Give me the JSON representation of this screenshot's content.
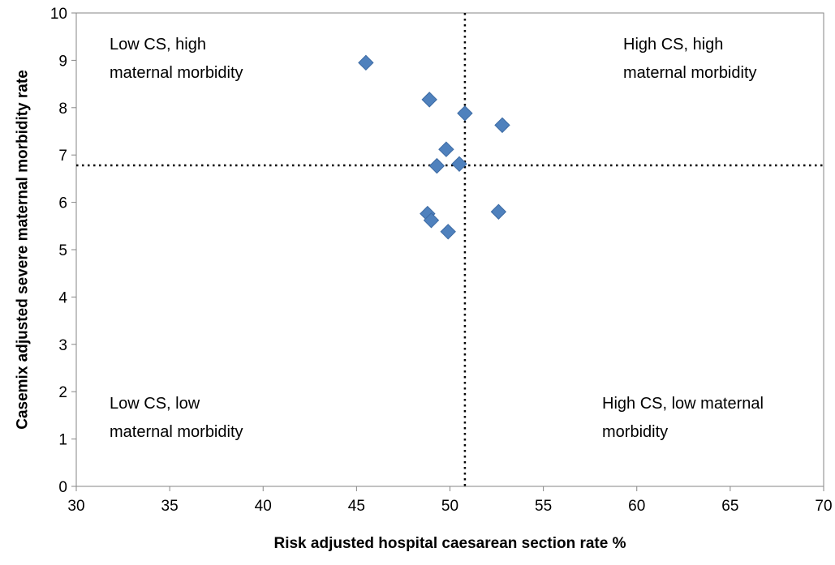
{
  "chart_data": {
    "type": "scatter",
    "xlabel": "Risk adjusted hospital caesarean section rate %",
    "ylabel": "Casemix adjusted severe maternal morbidity rate",
    "xlim": [
      30,
      70
    ],
    "ylim": [
      0,
      10
    ],
    "xticks": [
      30,
      35,
      40,
      45,
      50,
      55,
      60,
      65,
      70
    ],
    "yticks": [
      0,
      1,
      2,
      3,
      4,
      5,
      6,
      7,
      8,
      9,
      10
    ],
    "grid": false,
    "legend": "none",
    "marker": "diamond",
    "marker_color": "#4f81bd",
    "reference_lines": {
      "x": 50.8,
      "y": 6.78,
      "style": "dotted",
      "color": "#000000"
    },
    "points": [
      {
        "x": 45.5,
        "y": 8.95
      },
      {
        "x": 48.9,
        "y": 8.17
      },
      {
        "x": 50.8,
        "y": 7.88
      },
      {
        "x": 52.8,
        "y": 7.63
      },
      {
        "x": 49.8,
        "y": 7.12
      },
      {
        "x": 49.3,
        "y": 6.77
      },
      {
        "x": 50.5,
        "y": 6.81
      },
      {
        "x": 48.8,
        "y": 5.76
      },
      {
        "x": 49.0,
        "y": 5.62
      },
      {
        "x": 52.6,
        "y": 5.8
      },
      {
        "x": 49.9,
        "y": 5.38
      }
    ],
    "annotations": [
      {
        "id": "top-left",
        "lines": [
          "Low CS, high",
          "maternal morbidity"
        ]
      },
      {
        "id": "top-right",
        "lines": [
          "High CS, high",
          "maternal morbidity"
        ]
      },
      {
        "id": "bottom-left",
        "lines": [
          "Low CS, low",
          "maternal morbidity"
        ]
      },
      {
        "id": "bottom-right",
        "lines": [
          "High CS, low maternal",
          "morbidity"
        ]
      }
    ]
  }
}
